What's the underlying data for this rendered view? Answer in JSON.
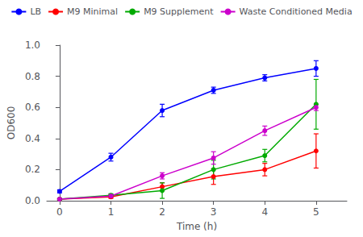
{
  "chart_data": {
    "type": "line",
    "x": [
      0,
      1,
      2,
      3,
      4,
      5
    ],
    "series": [
      {
        "name": "LB",
        "color": "#0000FF",
        "marker": "circle",
        "values": [
          0.06,
          0.28,
          0.58,
          0.71,
          0.79,
          0.85
        ],
        "yerr": [
          0.01,
          0.025,
          0.04,
          0.02,
          0.02,
          0.05
        ]
      },
      {
        "name": "M9 Minimal",
        "color": "#FF0000",
        "marker": "circle",
        "values": [
          0.01,
          0.025,
          0.09,
          0.155,
          0.2,
          0.32
        ],
        "yerr": [
          0.005,
          0.01,
          0.025,
          0.05,
          0.04,
          0.11
        ]
      },
      {
        "name": "M9 Supplement",
        "color": "#00AA00",
        "marker": "circle",
        "values": [
          0.01,
          0.035,
          0.065,
          0.2,
          0.29,
          0.62
        ],
        "yerr": [
          0.005,
          0.01,
          0.05,
          0.06,
          0.04,
          0.16
        ]
      },
      {
        "name": "Waste Conditioned Media",
        "color": "#CC00CC",
        "marker": "circle",
        "values": [
          0.01,
          0.03,
          0.16,
          0.275,
          0.45,
          0.6
        ],
        "yerr": [
          0.005,
          0.01,
          0.02,
          0.04,
          0.03,
          0.02
        ]
      }
    ],
    "x_label": "Time (h)",
    "y_label": "OD600",
    "xlim": [
      -0.25,
      5.6
    ],
    "xticks": [
      0,
      1,
      2,
      3,
      4,
      5
    ],
    "ylim": [
      0.0,
      1.0
    ],
    "yticks": [
      {
        "value": 0.0,
        "label": "0.0"
      },
      0.2,
      0.4,
      0.6,
      0.8,
      {
        "value": 1.0,
        "label": "1.0"
      }
    ],
    "grid": false,
    "legend": "top"
  }
}
